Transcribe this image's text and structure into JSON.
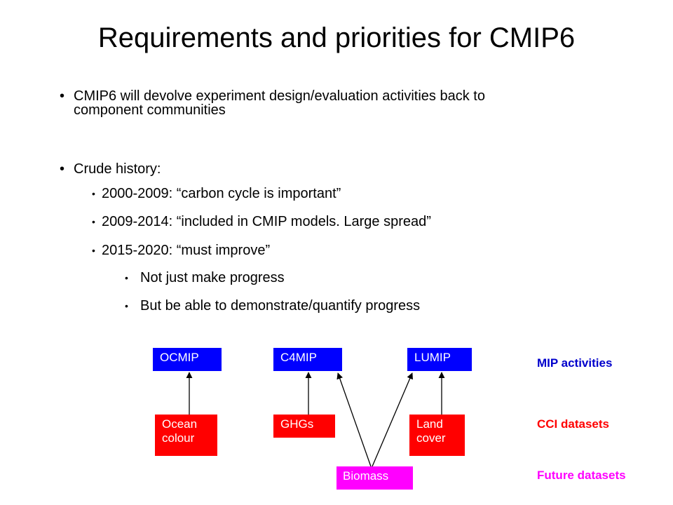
{
  "title": "Requirements and priorities for CMIP6",
  "bullets": {
    "b1_line1": "CMIP6 will devolve experiment design/evaluation activities back to",
    "b1_line2": "component communities",
    "b2": "Crude history:",
    "h1": "2000-2009:  “carbon cycle is important”",
    "h2": "2009-2014: “included in CMIP models. Large spread”",
    "h3": "2015-2020: “must improve”",
    "s1": "Not just make progress",
    "s2": "But be able to demonstrate/quantify progress"
  },
  "diagram": {
    "mip": [
      "OCMIP",
      "C4MIP",
      "LUMIP"
    ],
    "cci": {
      "ocean_line1": "Ocean",
      "ocean_line2": "colour",
      "ghgs": "GHGs",
      "land_line1": "Land",
      "land_line2": "cover"
    },
    "future": "Biomass",
    "labels": {
      "mip": "MIP activities",
      "cci": "CCI datasets",
      "future": "Future datasets"
    },
    "colors": {
      "mip_box": "#0000ff",
      "cci_box": "#ff0000",
      "future_box": "#ff00ff",
      "mip_label": "#0000cc",
      "cci_label": "#ff0000",
      "future_label": "#ff00ff"
    }
  }
}
